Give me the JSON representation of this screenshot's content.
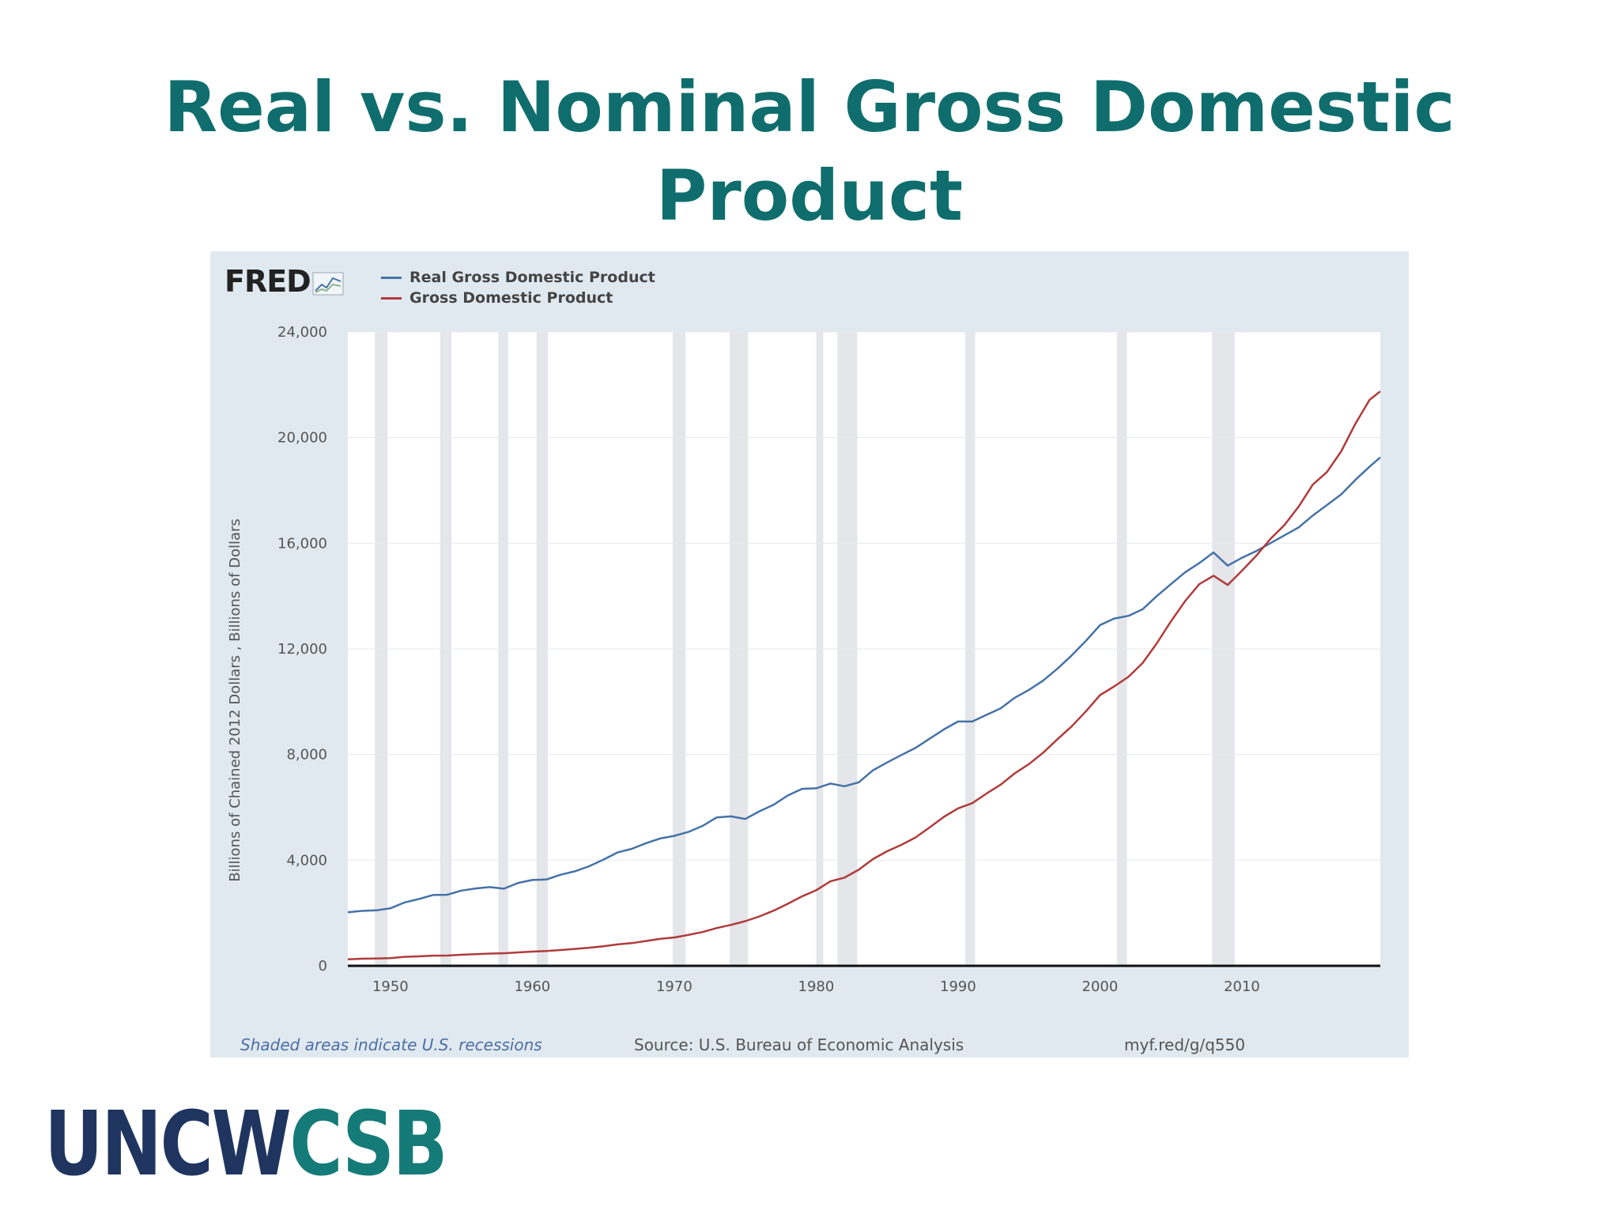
{
  "slide": {
    "title": "Real vs. Nominal Gross Domestic Product"
  },
  "brand": {
    "part1": "UNCW",
    "part2": "CSB",
    "color1": "#1f3560",
    "color2": "#157b78"
  },
  "chart_data": {
    "type": "line",
    "logo": "FRED",
    "ylabel": "Billions of Chained 2012 Dollars , Billions of Dollars",
    "xlim": [
      1947,
      2019.75
    ],
    "ylim": [
      0,
      24000
    ],
    "yticks": [
      0,
      4000,
      8000,
      12000,
      16000,
      20000,
      24000
    ],
    "ytick_labels": [
      "0",
      "4,000",
      "8,000",
      "12,000",
      "16,000",
      "20,000",
      "24,000"
    ],
    "xticks": [
      1950,
      1960,
      1970,
      1980,
      1990,
      2000,
      2010
    ],
    "xtick_labels": [
      "1950",
      "1960",
      "1970",
      "1980",
      "1990",
      "2000",
      "2010"
    ],
    "grid": true,
    "legend_position": "top-left",
    "recessions": [
      [
        1948.9,
        1949.8
      ],
      [
        1953.5,
        1954.3
      ],
      [
        1957.6,
        1958.3
      ],
      [
        1960.3,
        1961.1
      ],
      [
        1969.9,
        1970.8
      ],
      [
        1973.9,
        1975.2
      ],
      [
        1980.0,
        1980.5
      ],
      [
        1981.5,
        1982.9
      ],
      [
        1990.5,
        1991.2
      ],
      [
        2001.2,
        2001.9
      ],
      [
        2007.9,
        2009.5
      ]
    ],
    "series": [
      {
        "name": "Real Gross Domestic Product",
        "color": "#4572a7",
        "points": [
          [
            1947,
            2030
          ],
          [
            1948,
            2080
          ],
          [
            1949,
            2100
          ],
          [
            1950,
            2180
          ],
          [
            1951,
            2400
          ],
          [
            1952,
            2530
          ],
          [
            1953,
            2680
          ],
          [
            1954,
            2690
          ],
          [
            1955,
            2850
          ],
          [
            1956,
            2930
          ],
          [
            1957,
            2980
          ],
          [
            1958,
            2920
          ],
          [
            1959,
            3140
          ],
          [
            1960,
            3250
          ],
          [
            1961,
            3270
          ],
          [
            1962,
            3450
          ],
          [
            1963,
            3580
          ],
          [
            1964,
            3770
          ],
          [
            1965,
            4020
          ],
          [
            1966,
            4290
          ],
          [
            1967,
            4430
          ],
          [
            1968,
            4640
          ],
          [
            1969,
            4820
          ],
          [
            1970,
            4920
          ],
          [
            1971,
            5070
          ],
          [
            1972,
            5300
          ],
          [
            1973,
            5620
          ],
          [
            1974,
            5660
          ],
          [
            1975,
            5560
          ],
          [
            1976,
            5850
          ],
          [
            1977,
            6100
          ],
          [
            1978,
            6450
          ],
          [
            1979,
            6700
          ],
          [
            1980,
            6720
          ],
          [
            1981,
            6900
          ],
          [
            1982,
            6800
          ],
          [
            1983,
            6950
          ],
          [
            1984,
            7400
          ],
          [
            1985,
            7700
          ],
          [
            1986,
            7980
          ],
          [
            1987,
            8250
          ],
          [
            1988,
            8600
          ],
          [
            1989,
            8950
          ],
          [
            1990,
            9250
          ],
          [
            1991,
            9250
          ],
          [
            1992,
            9500
          ],
          [
            1993,
            9750
          ],
          [
            1994,
            10150
          ],
          [
            1995,
            10450
          ],
          [
            1996,
            10800
          ],
          [
            1997,
            11250
          ],
          [
            1998,
            11750
          ],
          [
            1999,
            12300
          ],
          [
            2000,
            12900
          ],
          [
            2001,
            13150
          ],
          [
            2002,
            13250
          ],
          [
            2003,
            13500
          ],
          [
            2004,
            14000
          ],
          [
            2005,
            14450
          ],
          [
            2006,
            14900
          ],
          [
            2007,
            15250
          ],
          [
            2008,
            15650
          ],
          [
            2009,
            15150
          ],
          [
            2010,
            15450
          ],
          [
            2011,
            15700
          ],
          [
            2012,
            16000
          ],
          [
            2013,
            16300
          ],
          [
            2014,
            16600
          ],
          [
            2015,
            17050
          ],
          [
            2016,
            17450
          ],
          [
            2017,
            17850
          ],
          [
            2018,
            18400
          ],
          [
            2019,
            18900
          ],
          [
            2019.75,
            19250
          ]
        ]
      },
      {
        "name": "Gross Domestic Product",
        "color": "#b03b3b",
        "points": [
          [
            1947,
            245
          ],
          [
            1948,
            270
          ],
          [
            1949,
            275
          ],
          [
            1950,
            290
          ],
          [
            1951,
            340
          ],
          [
            1952,
            360
          ],
          [
            1953,
            385
          ],
          [
            1954,
            390
          ],
          [
            1955,
            420
          ],
          [
            1956,
            440
          ],
          [
            1957,
            465
          ],
          [
            1958,
            475
          ],
          [
            1959,
            510
          ],
          [
            1960,
            540
          ],
          [
            1961,
            560
          ],
          [
            1962,
            600
          ],
          [
            1963,
            640
          ],
          [
            1964,
            685
          ],
          [
            1965,
            740
          ],
          [
            1966,
            810
          ],
          [
            1967,
            860
          ],
          [
            1968,
            940
          ],
          [
            1969,
            1020
          ],
          [
            1970,
            1075
          ],
          [
            1971,
            1170
          ],
          [
            1972,
            1280
          ],
          [
            1973,
            1430
          ],
          [
            1974,
            1550
          ],
          [
            1975,
            1690
          ],
          [
            1976,
            1870
          ],
          [
            1977,
            2090
          ],
          [
            1978,
            2350
          ],
          [
            1979,
            2630
          ],
          [
            1980,
            2860
          ],
          [
            1981,
            3200
          ],
          [
            1982,
            3340
          ],
          [
            1983,
            3640
          ],
          [
            1984,
            4040
          ],
          [
            1985,
            4340
          ],
          [
            1986,
            4580
          ],
          [
            1987,
            4860
          ],
          [
            1988,
            5240
          ],
          [
            1989,
            5640
          ],
          [
            1990,
            5960
          ],
          [
            1991,
            6160
          ],
          [
            1992,
            6520
          ],
          [
            1993,
            6860
          ],
          [
            1994,
            7290
          ],
          [
            1995,
            7640
          ],
          [
            1996,
            8070
          ],
          [
            1997,
            8580
          ],
          [
            1998,
            9060
          ],
          [
            1999,
            9630
          ],
          [
            2000,
            10250
          ],
          [
            2001,
            10580
          ],
          [
            2002,
            10940
          ],
          [
            2003,
            11460
          ],
          [
            2004,
            12210
          ],
          [
            2005,
            13040
          ],
          [
            2006,
            13810
          ],
          [
            2007,
            14450
          ],
          [
            2008,
            14770
          ],
          [
            2009,
            14420
          ],
          [
            2010,
            14960
          ],
          [
            2011,
            15520
          ],
          [
            2012,
            16160
          ],
          [
            2013,
            16690
          ],
          [
            2014,
            17390
          ],
          [
            2015,
            18220
          ],
          [
            2016,
            18700
          ],
          [
            2017,
            19480
          ],
          [
            2018,
            20530
          ],
          [
            2019,
            21430
          ],
          [
            2019.75,
            21750
          ]
        ]
      }
    ],
    "footer": {
      "note": "Shaded areas indicate U.S. recessions",
      "source": "Source: U.S. Bureau of Economic Analysis",
      "link": "myf.red/g/q550"
    }
  }
}
